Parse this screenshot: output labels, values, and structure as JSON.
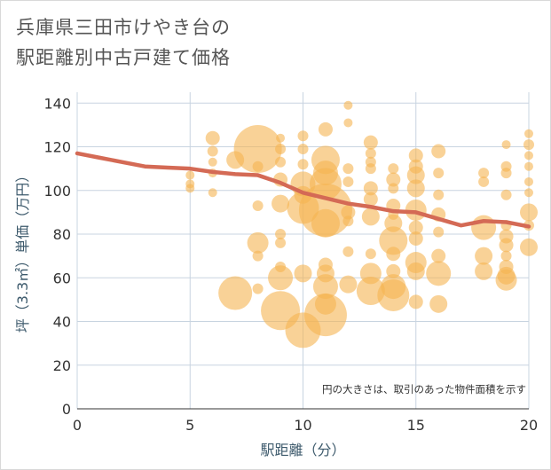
{
  "title_line1": "兵庫県三田市けやき台の",
  "title_line2": "駅距離別中古戸建て価格",
  "chart_data": {
    "type": "scatter",
    "xlabel": "駅距離（分）",
    "ylabel": "坪（3.3㎡）単価（万円）",
    "xlim": [
      0,
      20
    ],
    "ylim": [
      0,
      145
    ],
    "xticks": [
      0,
      5,
      10,
      15,
      20
    ],
    "yticks": [
      0,
      20,
      40,
      60,
      80,
      100,
      120,
      140
    ],
    "grid": true,
    "note": "円の大きさは、取引のあった物件面積を示す",
    "bubble_color": "#f5b452",
    "line_color": "#d46a55",
    "points": [
      {
        "x": 5,
        "y": 103,
        "s": 5
      },
      {
        "x": 5,
        "y": 107,
        "s": 5
      },
      {
        "x": 5,
        "y": 101,
        "s": 5
      },
      {
        "x": 6,
        "y": 124,
        "s": 8
      },
      {
        "x": 6,
        "y": 118,
        "s": 6
      },
      {
        "x": 6,
        "y": 113,
        "s": 5
      },
      {
        "x": 6,
        "y": 108,
        "s": 5
      },
      {
        "x": 6,
        "y": 99,
        "s": 5
      },
      {
        "x": 7,
        "y": 114,
        "s": 10
      },
      {
        "x": 7,
        "y": 53,
        "s": 19
      },
      {
        "x": 8,
        "y": 119,
        "s": 27
      },
      {
        "x": 8,
        "y": 111,
        "s": 6
      },
      {
        "x": 8,
        "y": 76,
        "s": 12
      },
      {
        "x": 8,
        "y": 70,
        "s": 6
      },
      {
        "x": 8,
        "y": 93,
        "s": 6
      },
      {
        "x": 8,
        "y": 55,
        "s": 6
      },
      {
        "x": 9,
        "y": 124,
        "s": 5
      },
      {
        "x": 9,
        "y": 119,
        "s": 6
      },
      {
        "x": 9,
        "y": 113,
        "s": 6
      },
      {
        "x": 9,
        "y": 105,
        "s": 8
      },
      {
        "x": 9,
        "y": 94,
        "s": 10
      },
      {
        "x": 9,
        "y": 80,
        "s": 6
      },
      {
        "x": 9,
        "y": 76,
        "s": 6
      },
      {
        "x": 9,
        "y": 65,
        "s": 6
      },
      {
        "x": 9,
        "y": 60,
        "s": 14
      },
      {
        "x": 9,
        "y": 45,
        "s": 22
      },
      {
        "x": 10,
        "y": 125,
        "s": 6
      },
      {
        "x": 10,
        "y": 119,
        "s": 6
      },
      {
        "x": 10,
        "y": 112,
        "s": 6
      },
      {
        "x": 10,
        "y": 103,
        "s": 14
      },
      {
        "x": 10,
        "y": 98,
        "s": 10
      },
      {
        "x": 10,
        "y": 92,
        "s": 18
      },
      {
        "x": 10,
        "y": 62,
        "s": 10
      },
      {
        "x": 10,
        "y": 36,
        "s": 20
      },
      {
        "x": 11,
        "y": 128,
        "s": 8
      },
      {
        "x": 11,
        "y": 114,
        "s": 16
      },
      {
        "x": 11,
        "y": 108,
        "s": 14
      },
      {
        "x": 11,
        "y": 103,
        "s": 18
      },
      {
        "x": 11,
        "y": 91,
        "s": 30
      },
      {
        "x": 11,
        "y": 85,
        "s": 16
      },
      {
        "x": 11,
        "y": 66,
        "s": 8
      },
      {
        "x": 11,
        "y": 62,
        "s": 10
      },
      {
        "x": 11,
        "y": 56,
        "s": 14
      },
      {
        "x": 11,
        "y": 48,
        "s": 12
      },
      {
        "x": 11,
        "y": 43,
        "s": 24
      },
      {
        "x": 12,
        "y": 139,
        "s": 5
      },
      {
        "x": 12,
        "y": 131,
        "s": 5
      },
      {
        "x": 12,
        "y": 110,
        "s": 6
      },
      {
        "x": 12,
        "y": 104,
        "s": 6
      },
      {
        "x": 12,
        "y": 90,
        "s": 8
      },
      {
        "x": 12,
        "y": 86,
        "s": 6
      },
      {
        "x": 12,
        "y": 72,
        "s": 6
      },
      {
        "x": 12,
        "y": 57,
        "s": 10
      },
      {
        "x": 13,
        "y": 122,
        "s": 8
      },
      {
        "x": 13,
        "y": 117,
        "s": 6
      },
      {
        "x": 13,
        "y": 113,
        "s": 6
      },
      {
        "x": 13,
        "y": 110,
        "s": 6
      },
      {
        "x": 13,
        "y": 101,
        "s": 8
      },
      {
        "x": 13,
        "y": 96,
        "s": 8
      },
      {
        "x": 13,
        "y": 88,
        "s": 10
      },
      {
        "x": 13,
        "y": 71,
        "s": 6
      },
      {
        "x": 13,
        "y": 62,
        "s": 12
      },
      {
        "x": 13,
        "y": 54,
        "s": 16
      },
      {
        "x": 14,
        "y": 110,
        "s": 6
      },
      {
        "x": 14,
        "y": 105,
        "s": 8
      },
      {
        "x": 14,
        "y": 101,
        "s": 6
      },
      {
        "x": 14,
        "y": 93,
        "s": 8
      },
      {
        "x": 14,
        "y": 89,
        "s": 6
      },
      {
        "x": 14,
        "y": 85,
        "s": 10
      },
      {
        "x": 14,
        "y": 77,
        "s": 16
      },
      {
        "x": 14,
        "y": 71,
        "s": 8
      },
      {
        "x": 14,
        "y": 63,
        "s": 8
      },
      {
        "x": 14,
        "y": 56,
        "s": 14
      },
      {
        "x": 14,
        "y": 52,
        "s": 18
      },
      {
        "x": 15,
        "y": 116,
        "s": 8
      },
      {
        "x": 15,
        "y": 111,
        "s": 8
      },
      {
        "x": 15,
        "y": 107,
        "s": 10
      },
      {
        "x": 15,
        "y": 101,
        "s": 10
      },
      {
        "x": 15,
        "y": 91,
        "s": 12
      },
      {
        "x": 15,
        "y": 83,
        "s": 8
      },
      {
        "x": 15,
        "y": 78,
        "s": 8
      },
      {
        "x": 15,
        "y": 67,
        "s": 12
      },
      {
        "x": 15,
        "y": 63,
        "s": 10
      },
      {
        "x": 15,
        "y": 49,
        "s": 8
      },
      {
        "x": 16,
        "y": 118,
        "s": 8
      },
      {
        "x": 16,
        "y": 108,
        "s": 6
      },
      {
        "x": 16,
        "y": 98,
        "s": 6
      },
      {
        "x": 16,
        "y": 89,
        "s": 8
      },
      {
        "x": 16,
        "y": 81,
        "s": 6
      },
      {
        "x": 16,
        "y": 70,
        "s": 8
      },
      {
        "x": 16,
        "y": 62,
        "s": 14
      },
      {
        "x": 16,
        "y": 48,
        "s": 10
      },
      {
        "x": 18,
        "y": 108,
        "s": 6
      },
      {
        "x": 18,
        "y": 104,
        "s": 6
      },
      {
        "x": 18,
        "y": 83,
        "s": 14
      },
      {
        "x": 18,
        "y": 70,
        "s": 10
      },
      {
        "x": 18,
        "y": 63,
        "s": 10
      },
      {
        "x": 19,
        "y": 121,
        "s": 5
      },
      {
        "x": 19,
        "y": 111,
        "s": 6
      },
      {
        "x": 19,
        "y": 108,
        "s": 6
      },
      {
        "x": 19,
        "y": 98,
        "s": 6
      },
      {
        "x": 19,
        "y": 84,
        "s": 6
      },
      {
        "x": 19,
        "y": 79,
        "s": 8
      },
      {
        "x": 19,
        "y": 75,
        "s": 8
      },
      {
        "x": 19,
        "y": 70,
        "s": 6
      },
      {
        "x": 19,
        "y": 65,
        "s": 8
      },
      {
        "x": 19,
        "y": 61,
        "s": 10
      },
      {
        "x": 19,
        "y": 59,
        "s": 12
      },
      {
        "x": 20,
        "y": 126,
        "s": 5
      },
      {
        "x": 20,
        "y": 121,
        "s": 6
      },
      {
        "x": 20,
        "y": 116,
        "s": 5
      },
      {
        "x": 20,
        "y": 111,
        "s": 5
      },
      {
        "x": 20,
        "y": 104,
        "s": 5
      },
      {
        "x": 20,
        "y": 99,
        "s": 5
      },
      {
        "x": 20,
        "y": 90,
        "s": 10
      },
      {
        "x": 20,
        "y": 84,
        "s": 6
      },
      {
        "x": 20,
        "y": 74,
        "s": 10
      }
    ],
    "trend": {
      "x": [
        0,
        1,
        2,
        3,
        4,
        5,
        6,
        7,
        8,
        9,
        10,
        11,
        12,
        13,
        14,
        15,
        16,
        17,
        18,
        19,
        20
      ],
      "y": [
        117,
        115,
        113,
        111,
        110.5,
        110,
        108.5,
        107.5,
        107,
        103.5,
        99,
        96.5,
        94,
        92.5,
        90.5,
        90,
        87,
        84,
        86,
        85.5,
        83.5
      ]
    }
  }
}
